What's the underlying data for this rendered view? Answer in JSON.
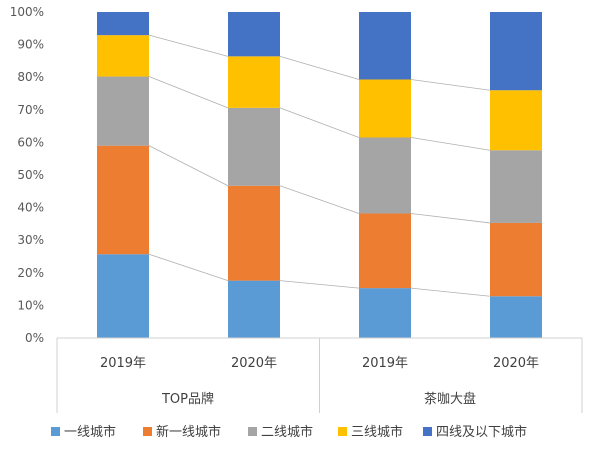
{
  "chart_data": {
    "type": "bar",
    "stacked": true,
    "percent": true,
    "ylim": [
      0,
      100
    ],
    "y_ticks": [
      "0%",
      "10%",
      "20%",
      "30%",
      "40%",
      "50%",
      "60%",
      "70%",
      "80%",
      "90%",
      "100%"
    ],
    "categories": [
      "2019年",
      "2020年",
      "2019年",
      "2020年"
    ],
    "groups": [
      {
        "label": "TOP品牌",
        "categories": [
          "2019年",
          "2020年"
        ]
      },
      {
        "label": "茶咖大盘",
        "categories": [
          "2019年",
          "2020年"
        ]
      }
    ],
    "series": [
      {
        "name": "一线城市",
        "color": "#5B9BD5",
        "values": [
          25.7,
          17.6,
          15.3,
          12.8
        ]
      },
      {
        "name": "新一线城市",
        "color": "#ED7D31",
        "values": [
          33.3,
          29.1,
          22.9,
          22.5
        ]
      },
      {
        "name": "二线城市",
        "color": "#A5A5A5",
        "values": [
          21.2,
          23.9,
          23.3,
          22.3
        ]
      },
      {
        "name": "三线城市",
        "color": "#FFC000",
        "values": [
          12.7,
          15.8,
          17.8,
          18.4
        ]
      },
      {
        "name": "四线及以下城市",
        "color": "#4472C4",
        "values": [
          7.1,
          13.6,
          20.7,
          24.0
        ]
      }
    ],
    "series_lines": true,
    "grid": false,
    "legend_position": "bottom"
  }
}
